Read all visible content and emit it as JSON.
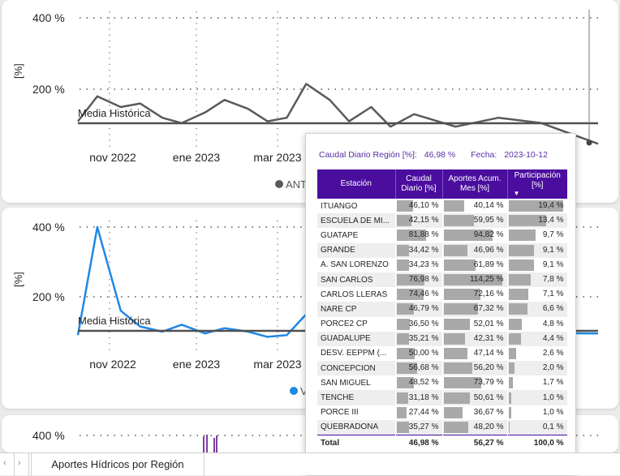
{
  "charts": [
    {
      "y_ticks": [
        "400 %",
        "200 %"
      ],
      "y_axis_label": "[%]",
      "x_ticks": [
        "nov 2022",
        "ene 2023",
        "mar 2023"
      ],
      "ref_line_label": "Media Histórica",
      "legend_label": "ANT",
      "series_color": "#5a5a5a",
      "ref_color": "#505050"
    },
    {
      "y_ticks": [
        "400 %",
        "200 %"
      ],
      "y_axis_label": "[%]",
      "x_ticks": [
        "nov 2022",
        "ene 2023",
        "mar 2023"
      ],
      "ref_line_label": "Media Histórica",
      "legend_label": "V",
      "series_color": "#1e88e5",
      "ref_color": "#505050"
    },
    {
      "y_ticks": [
        "400 %"
      ]
    }
  ],
  "chart_data": [
    {
      "type": "line",
      "series": [
        {
          "name": "ANT",
          "x": [
            "2022-10-01",
            "2022-10-15",
            "2022-11-01",
            "2022-11-15",
            "2022-12-01",
            "2022-12-15",
            "2023-01-01",
            "2023-01-15",
            "2023-02-01",
            "2023-02-15",
            "2023-03-01",
            "2023-03-15",
            "2023-04-01",
            "2023-04-15",
            "2023-05-01",
            "2023-05-15",
            "2023-06-01",
            "2023-07-01",
            "2023-08-01",
            "2023-09-01",
            "2023-10-12"
          ],
          "values": [
            110,
            180,
            150,
            160,
            120,
            105,
            135,
            170,
            145,
            110,
            120,
            215,
            170,
            110,
            150,
            95,
            130,
            95,
            120,
            105,
            47
          ]
        }
      ],
      "ylim": [
        0,
        400
      ],
      "reference_line": "Media Histórica"
    },
    {
      "type": "line",
      "series": [
        {
          "name": "V",
          "x": [
            "2022-10-01",
            "2022-10-15",
            "2022-11-01",
            "2022-11-15",
            "2022-12-01",
            "2022-12-15",
            "2023-01-01",
            "2023-01-15",
            "2023-02-01",
            "2023-02-15",
            "2023-03-01",
            "2023-03-15",
            "2023-04-01",
            "2023-04-15",
            "2023-05-01",
            "2023-10-12"
          ],
          "values": [
            90,
            400,
            160,
            115,
            100,
            120,
            95,
            110,
            100,
            85,
            90,
            150,
            115,
            105,
            100,
            95
          ]
        }
      ],
      "ylim": [
        0,
        400
      ],
      "reference_line": "Media Histórica"
    }
  ],
  "tooltip": {
    "caudal_label": "Caudal Diario Región [%]:",
    "caudal_value": "46,98 %",
    "fecha_label": "Fecha:",
    "fecha_value": "2023-10-12",
    "columns": [
      "Estación",
      "Caudal Diario [%]",
      "Aportes Acum. Mes [%]",
      "Participación [%]"
    ],
    "rows": [
      {
        "estacion": "ITUANGO",
        "caudal": "46,10 %",
        "caudal_v": 46.1,
        "aportes": "40,14 %",
        "aportes_v": 40.14,
        "part": "19,4 %",
        "part_v": 19.4
      },
      {
        "estacion": "ESCUELA DE MI...",
        "caudal": "42,15 %",
        "caudal_v": 42.15,
        "aportes": "59,95 %",
        "aportes_v": 59.95,
        "part": "13,4 %",
        "part_v": 13.4
      },
      {
        "estacion": "GUATAPE",
        "caudal": "81,88 %",
        "caudal_v": 81.88,
        "aportes": "94,82 %",
        "aportes_v": 94.82,
        "part": "9,7 %",
        "part_v": 9.7
      },
      {
        "estacion": "GRANDE",
        "caudal": "34,42 %",
        "caudal_v": 34.42,
        "aportes": "46,96 %",
        "aportes_v": 46.96,
        "part": "9,1 %",
        "part_v": 9.1
      },
      {
        "estacion": "A. SAN LORENZO",
        "caudal": "34,23 %",
        "caudal_v": 34.23,
        "aportes": "61,89 %",
        "aportes_v": 61.89,
        "part": "9,1 %",
        "part_v": 9.1
      },
      {
        "estacion": "SAN CARLOS",
        "caudal": "76,98 %",
        "caudal_v": 76.98,
        "aportes": "114,25 %",
        "aportes_v": 114.25,
        "part": "7,8 %",
        "part_v": 7.8
      },
      {
        "estacion": "CARLOS LLERAS",
        "caudal": "74,46 %",
        "caudal_v": 74.46,
        "aportes": "72,16 %",
        "aportes_v": 72.16,
        "part": "7,1 %",
        "part_v": 7.1
      },
      {
        "estacion": "NARE CP",
        "caudal": "46,79 %",
        "caudal_v": 46.79,
        "aportes": "67,32 %",
        "aportes_v": 67.32,
        "part": "6,6 %",
        "part_v": 6.6
      },
      {
        "estacion": "PORCE2 CP",
        "caudal": "36,50 %",
        "caudal_v": 36.5,
        "aportes": "52,01 %",
        "aportes_v": 52.01,
        "part": "4,8 %",
        "part_v": 4.8
      },
      {
        "estacion": "GUADALUPE",
        "caudal": "35,21 %",
        "caudal_v": 35.21,
        "aportes": "42,31 %",
        "aportes_v": 42.31,
        "part": "4,4 %",
        "part_v": 4.4
      },
      {
        "estacion": "DESV. EEPPM (...",
        "caudal": "50,00 %",
        "caudal_v": 50.0,
        "aportes": "47,14 %",
        "aportes_v": 47.14,
        "part": "2,6 %",
        "part_v": 2.6
      },
      {
        "estacion": "CONCEPCION",
        "caudal": "56,68 %",
        "caudal_v": 56.68,
        "aportes": "56,20 %",
        "aportes_v": 56.2,
        "part": "2,0 %",
        "part_v": 2.0
      },
      {
        "estacion": "SAN MIGUEL",
        "caudal": "48,52 %",
        "caudal_v": 48.52,
        "aportes": "73,79 %",
        "aportes_v": 73.79,
        "part": "1,7 %",
        "part_v": 1.7
      },
      {
        "estacion": "TENCHE",
        "caudal": "31,18 %",
        "caudal_v": 31.18,
        "aportes": "50,61 %",
        "aportes_v": 50.61,
        "part": "1,0 %",
        "part_v": 1.0
      },
      {
        "estacion": "PORCE III",
        "caudal": "27,44 %",
        "caudal_v": 27.44,
        "aportes": "36,67 %",
        "aportes_v": 36.67,
        "part": "1,0 %",
        "part_v": 1.0
      },
      {
        "estacion": "QUEBRADONA",
        "caudal": "35,27 %",
        "caudal_v": 35.27,
        "aportes": "48,20 %",
        "aportes_v": 48.2,
        "part": "0,1 %",
        "part_v": 0.1
      }
    ],
    "total": {
      "label": "Total",
      "caudal": "46,98 %",
      "aportes": "56,27 %",
      "part": "100,0 %"
    },
    "bar_color": "#a9a9a9",
    "header_color": "#4a0d9e"
  },
  "tabbar": {
    "nav_prev": "‹",
    "nav_next": "›",
    "page_tab": "Aportes Hídricos por Región"
  }
}
